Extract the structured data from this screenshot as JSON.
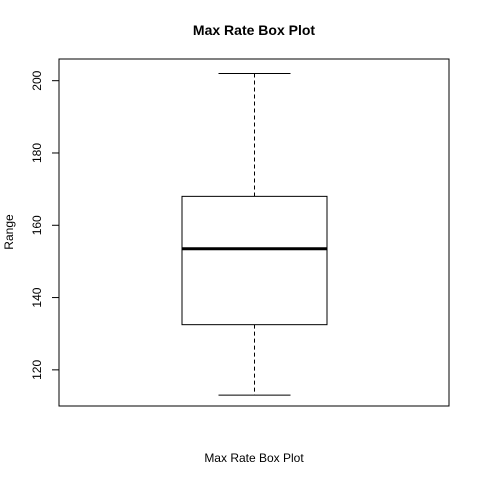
{
  "chart_data": {
    "type": "box",
    "title": "Max Rate Box Plot",
    "xlabel": "Max Rate Box Plot",
    "ylabel": "Range",
    "ylim": [
      110,
      206
    ],
    "yticks": [
      120,
      140,
      160,
      180,
      200
    ],
    "grid": false,
    "legend": "none",
    "box": {
      "whisker_low": 113,
      "q1": 132.5,
      "median": 153.5,
      "q3": 168,
      "whisker_high": 202
    }
  }
}
